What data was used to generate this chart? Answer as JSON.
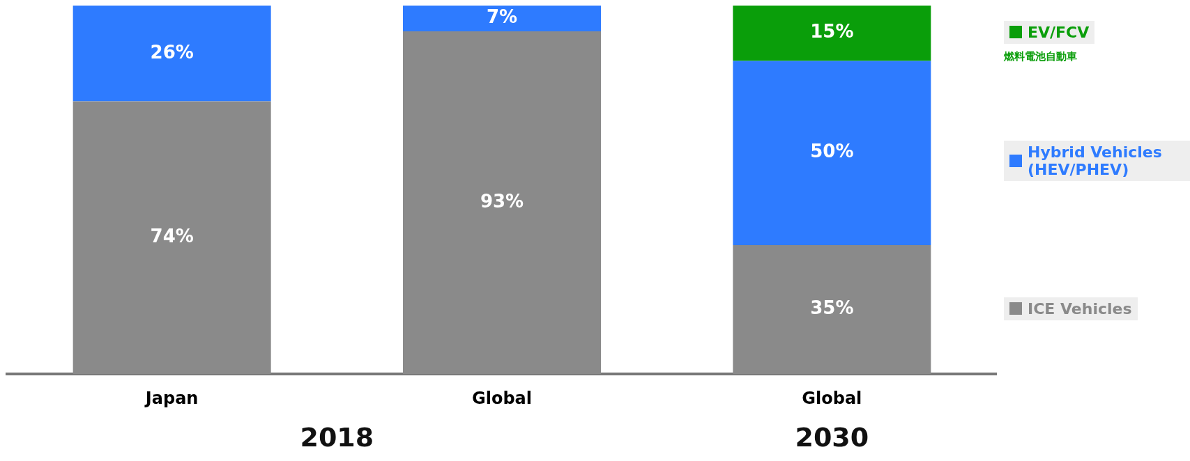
{
  "chart_data": {
    "type": "bar",
    "stacked": true,
    "categories": [
      "Japan",
      "Global",
      "Global"
    ],
    "series": [
      {
        "name": "ICE Vehicles",
        "color": "#8a8a8a",
        "values": [
          74,
          93,
          35
        ],
        "value_labels": [
          "74%",
          "93%",
          "35%"
        ]
      },
      {
        "name": "Hybrid Vehicles (HEV/PHEV)",
        "color": "#2e7bff",
        "values": [
          26,
          7,
          50
        ],
        "value_labels": [
          "26%",
          "7%",
          "50%"
        ]
      },
      {
        "name": "EV/FCV",
        "color": "#0a9e0a",
        "values": [
          null,
          null,
          15
        ],
        "value_labels": [
          null,
          null,
          "15%"
        ]
      }
    ],
    "ylim": [
      0,
      100
    ],
    "tick_labels": "x",
    "grid": false,
    "legend": "right",
    "annotations": [
      "2018",
      "2030",
      "燃料電池自動車"
    ]
  }
}
